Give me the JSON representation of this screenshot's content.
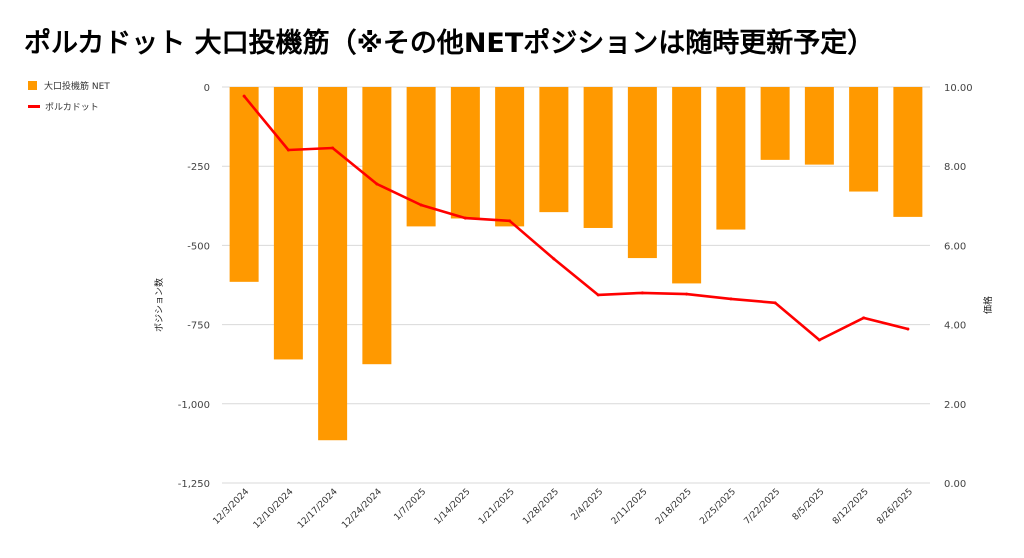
{
  "chart_data": {
    "type": "bar",
    "title": "ポルカドット 大口投機筋（※その他NETポジションは随時更新予定）",
    "categories": [
      "12/3/2024",
      "12/10/2024",
      "12/17/2024",
      "12/24/2024",
      "1/7/2025",
      "1/14/2025",
      "1/21/2025",
      "1/28/2025",
      "2/4/2025",
      "2/11/2025",
      "2/18/2025",
      "2/25/2025",
      "7/22/2025",
      "8/5/2025",
      "8/12/2025",
      "8/26/2025"
    ],
    "series": [
      {
        "name": "大口投機筋 NET",
        "type": "bar",
        "axis": "left",
        "color": "#ff9900",
        "values": [
          -615,
          -860,
          -1115,
          -875,
          -440,
          -415,
          -440,
          -395,
          -445,
          -540,
          -620,
          -450,
          -230,
          -245,
          -330,
          -410
        ]
      },
      {
        "name": "ポルカドット",
        "type": "line",
        "axis": "right",
        "color": "#ff0000",
        "values": [
          9.77,
          8.41,
          8.46,
          7.55,
          7.02,
          6.69,
          6.62,
          5.66,
          4.75,
          4.8,
          4.77,
          4.65,
          4.55,
          3.61,
          4.17,
          3.89
        ]
      }
    ],
    "ylabel": "ポジション数",
    "y2label": "価格",
    "ylim": [
      -1250,
      0
    ],
    "y2lim": [
      0,
      10
    ],
    "yticks": [
      {
        "value": 0,
        "label": "0"
      },
      {
        "value": -250,
        "label": "-250"
      },
      {
        "value": -500,
        "label": "-500"
      },
      {
        "value": -750,
        "label": "-750"
      },
      {
        "value": -1000,
        "label": "-1,000"
      },
      {
        "value": -1250,
        "label": "-1,250"
      }
    ],
    "y2ticks": [
      {
        "value": 10,
        "label": "10.00"
      },
      {
        "value": 8,
        "label": "8.00"
      },
      {
        "value": 6,
        "label": "6.00"
      },
      {
        "value": 4,
        "label": "4.00"
      },
      {
        "value": 2,
        "label": "2.00"
      },
      {
        "value": 0,
        "label": "0.00"
      }
    ],
    "grid": true,
    "legend": "top-left"
  }
}
